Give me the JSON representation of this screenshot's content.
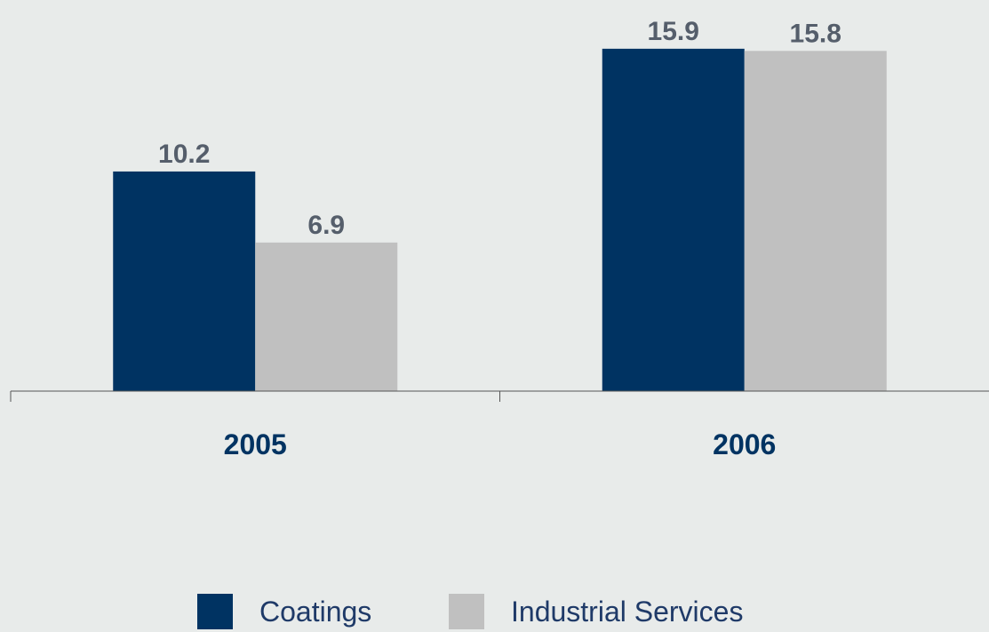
{
  "chart_data": {
    "type": "bar",
    "categories": [
      "2005",
      "2006"
    ],
    "series": [
      {
        "name": "Coatings",
        "values": [
          10.2,
          15.9
        ]
      },
      {
        "name": "Industrial Services",
        "values": [
          6.9,
          15.8
        ]
      }
    ],
    "data_labels": [
      [
        "10.2",
        "15.9"
      ],
      [
        "6.9",
        "15.8"
      ]
    ],
    "ylim": [
      0,
      16.1
    ],
    "grid": false,
    "legend": "bottom",
    "colors": {
      "Coatings": "#003362",
      "Industrial Services": "#c0c0c0",
      "label_text": "#555e6b",
      "category_text": "#003362",
      "axis": "#555555",
      "background": "#e8ebea"
    }
  }
}
